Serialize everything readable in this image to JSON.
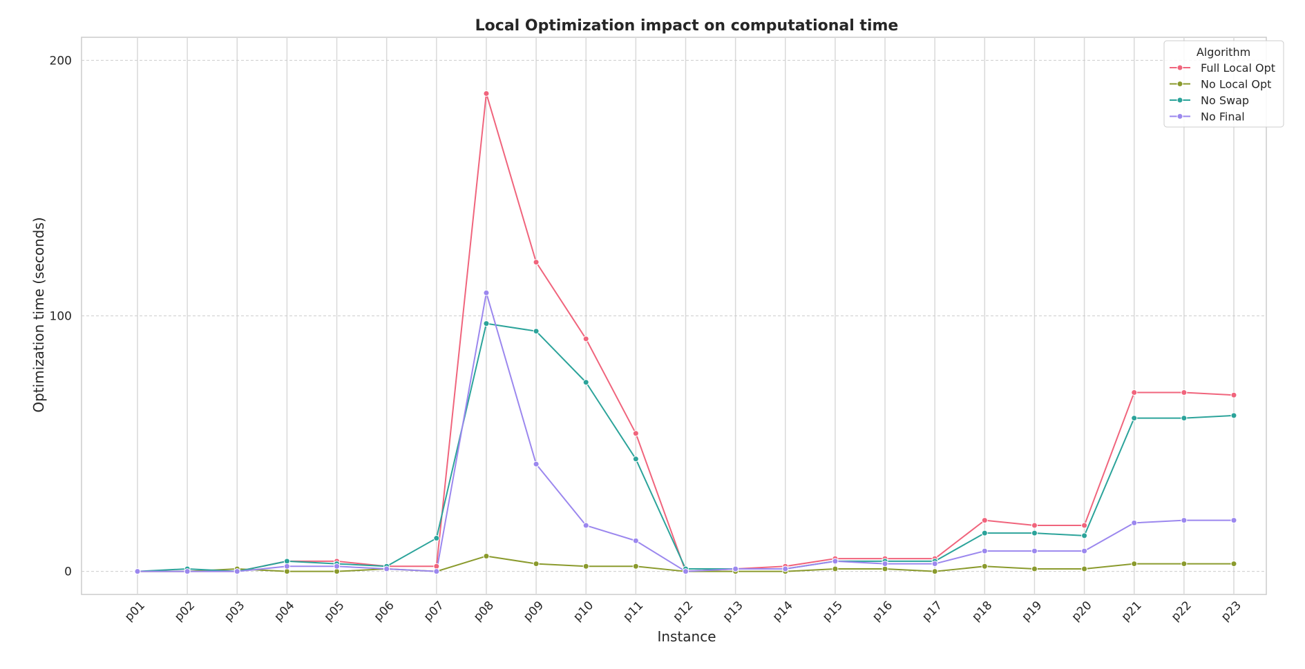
{
  "chart_data": {
    "type": "line",
    "title": "Local Optimization impact on computational time",
    "xlabel": "Instance",
    "ylabel": "Optimization time (seconds)",
    "ylim": [
      -9,
      209
    ],
    "yticks": [
      0,
      100,
      200
    ],
    "grid": true,
    "legend": {
      "title": "Algorithm",
      "placement": "top-right"
    },
    "categories": [
      "p01",
      "p02",
      "p03",
      "p04",
      "p05",
      "p06",
      "p07",
      "p08",
      "p09",
      "p10",
      "p11",
      "p12",
      "p13",
      "p14",
      "p15",
      "p16",
      "p17",
      "p18",
      "p19",
      "p20",
      "p21",
      "p22",
      "p23"
    ],
    "series": [
      {
        "name": "Full Local Opt",
        "color": "#f0647c",
        "values": [
          0,
          0,
          0,
          4,
          4,
          2,
          2,
          187,
          121,
          91,
          54,
          0,
          1,
          2,
          5,
          5,
          5,
          20,
          18,
          18,
          70,
          70,
          69
        ]
      },
      {
        "name": "No Local Opt",
        "color": "#8a9a2c",
        "values": [
          0,
          0,
          1,
          0,
          0,
          1,
          0,
          6,
          3,
          2,
          2,
          0,
          0,
          0,
          1,
          1,
          0,
          2,
          1,
          1,
          3,
          3,
          3
        ]
      },
      {
        "name": "No Swap",
        "color": "#2ba39a",
        "values": [
          0,
          1,
          0,
          4,
          3,
          2,
          13,
          97,
          94,
          74,
          44,
          1,
          1,
          1,
          4,
          4,
          4,
          15,
          15,
          14,
          60,
          60,
          61
        ]
      },
      {
        "name": "No Final",
        "color": "#9b87ee",
        "values": [
          0,
          0,
          0,
          2,
          2,
          1,
          0,
          109,
          42,
          18,
          12,
          0,
          1,
          1,
          4,
          3,
          3,
          8,
          8,
          8,
          19,
          20,
          20
        ]
      }
    ]
  }
}
